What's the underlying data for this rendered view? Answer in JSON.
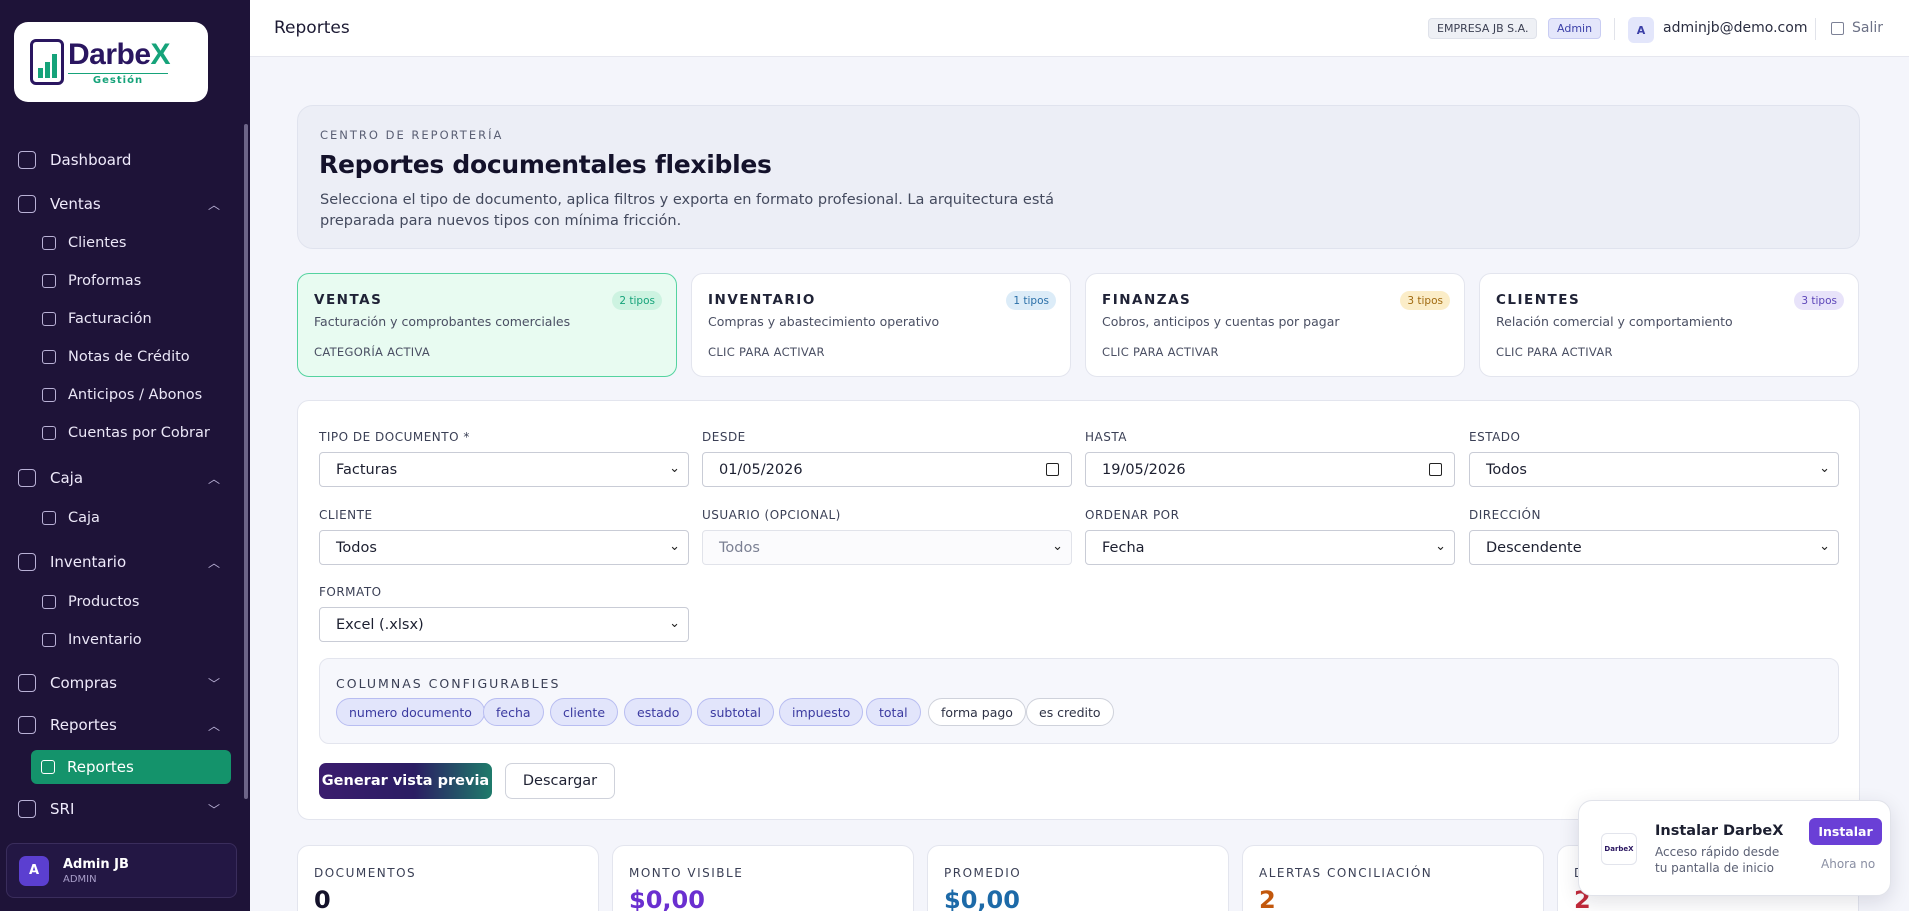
{
  "brand": {
    "name_main": "Darbe",
    "name_accent": "X",
    "tagline": "Gestión"
  },
  "sidebar": {
    "dashboard": "Dashboard",
    "ventas": {
      "label": "Ventas",
      "items": [
        "Clientes",
        "Proformas",
        "Facturación",
        "Notas de Crédito",
        "Anticipos / Abonos",
        "Cuentas por Cobrar"
      ]
    },
    "caja": {
      "label": "Caja",
      "items": [
        "Caja"
      ]
    },
    "inventario": {
      "label": "Inventario",
      "items": [
        "Productos",
        "Inventario"
      ]
    },
    "compras": {
      "label": "Compras"
    },
    "reportes": {
      "label": "Reportes",
      "items": [
        "Reportes"
      ]
    },
    "sri": {
      "label": "SRI"
    },
    "user": {
      "initial": "A",
      "name": "Admin JB",
      "role": "ADMIN"
    }
  },
  "header": {
    "title": "Reportes",
    "company": "EMPRESA JB S.A.",
    "role_badge": "Admin",
    "user_initial": "A",
    "email": "adminjb@demo.com",
    "logout": "Salir"
  },
  "hero": {
    "eyebrow": "CENTRO DE REPORTERÍA",
    "title": "Reportes documentales flexibles",
    "description": "Selecciona el tipo de documento, aplica filtros y exporta en formato profesional. La arquitectura está preparada para nuevos tipos con mínima fricción."
  },
  "categories": [
    {
      "name": "VENTAS",
      "badge": "2 tipos",
      "desc": "Facturación y comprobantes comerciales",
      "state": "CATEGORÍA ACTIVA",
      "badge_color": "#16a37a",
      "badge_bg": "#cdf3e1"
    },
    {
      "name": "INVENTARIO",
      "badge": "1 tipos",
      "desc": "Compras y abastecimiento operativo",
      "state": "CLIC PARA ACTIVAR",
      "badge_color": "#2a6fa8",
      "badge_bg": "#dcecf8"
    },
    {
      "name": "FINANZAS",
      "badge": "3 tipos",
      "desc": "Cobros, anticipos y cuentas por pagar",
      "state": "CLIC PARA ACTIVAR",
      "badge_color": "#a06a10",
      "badge_bg": "#fbedc8"
    },
    {
      "name": "CLIENTES",
      "badge": "3 tipos",
      "desc": "Relación comercial y comportamiento",
      "state": "CLIC PARA ACTIVAR",
      "badge_color": "#5c45b8",
      "badge_bg": "#e8e3fa"
    }
  ],
  "filters": {
    "tipo": {
      "label": "TIPO DE DOCUMENTO *",
      "value": "Facturas"
    },
    "desde": {
      "label": "DESDE",
      "value": "01/05/2026"
    },
    "hasta": {
      "label": "HASTA",
      "value": "19/05/2026"
    },
    "estado": {
      "label": "ESTADO",
      "value": "Todos"
    },
    "cliente": {
      "label": "CLIENTE",
      "value": "Todos"
    },
    "usuario": {
      "label": "USUARIO (OPCIONAL)",
      "value": "Todos"
    },
    "ordenar": {
      "label": "ORDENAR POR",
      "value": "Fecha"
    },
    "direccion": {
      "label": "DIRECCIÓN",
      "value": "Descendente"
    },
    "formato": {
      "label": "FORMATO",
      "value": "Excel (.xlsx)"
    }
  },
  "columns": {
    "title": "COLUMNAS CONFIGURABLES",
    "items": [
      {
        "label": "numero documento",
        "selected": true
      },
      {
        "label": "fecha",
        "selected": true
      },
      {
        "label": "cliente",
        "selected": true
      },
      {
        "label": "estado",
        "selected": true
      },
      {
        "label": "subtotal",
        "selected": true
      },
      {
        "label": "impuesto",
        "selected": true
      },
      {
        "label": "total",
        "selected": true
      },
      {
        "label": "forma pago",
        "selected": false
      },
      {
        "label": "es credito",
        "selected": false
      }
    ]
  },
  "actions": {
    "preview": "Generar vista previa",
    "download": "Descargar"
  },
  "stats": [
    {
      "label": "DOCUMENTOS",
      "value": "0",
      "color": "#14122b"
    },
    {
      "label": "MONTO VISIBLE",
      "value": "$0,00",
      "color": "#6a2fd0"
    },
    {
      "label": "PROMEDIO",
      "value": "$0,00",
      "color": "#1d6aa8"
    },
    {
      "label": "ALERTAS CONCILIACIÓN",
      "value": "2",
      "color": "#c2570c"
    },
    {
      "label": "D",
      "value": "2",
      "color": "#c22a3a"
    }
  ],
  "install": {
    "logo_text": "DarbeX",
    "title": "Instalar DarbeX",
    "desc": "Acceso rápido desde tu pantalla de inicio",
    "install_btn": "Instalar",
    "later": "Ahora no"
  }
}
